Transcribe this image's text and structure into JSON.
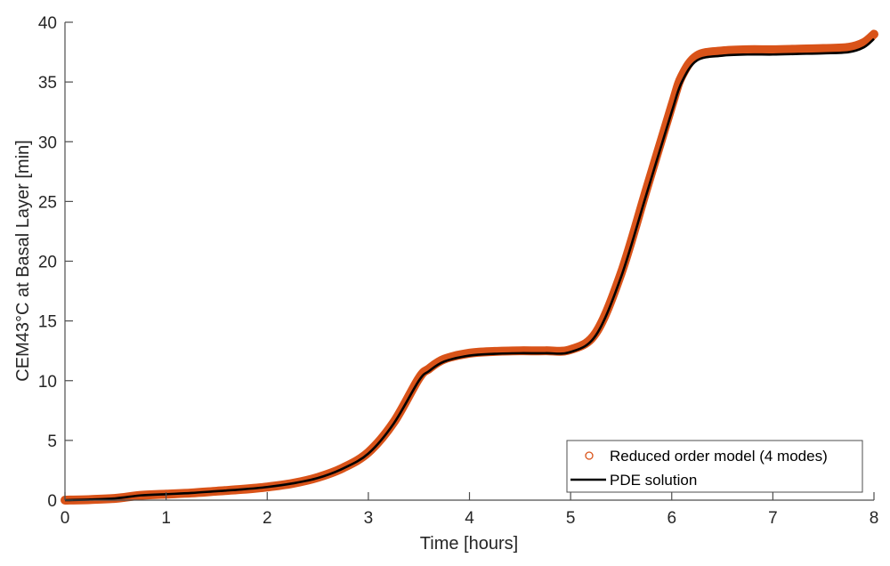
{
  "chart_data": {
    "type": "line",
    "title": "",
    "xlabel": "Time [hours]",
    "ylabel": "CEM43°C at Basal Layer [min]",
    "xlim": [
      0,
      8
    ],
    "ylim": [
      0,
      40
    ],
    "xticks": [
      0,
      1,
      2,
      3,
      4,
      5,
      6,
      7,
      8
    ],
    "yticks": [
      0,
      5,
      10,
      15,
      20,
      25,
      30,
      35,
      40
    ],
    "grid": false,
    "legend_position": "lower right",
    "series": [
      {
        "name": "Reduced order model (4 modes)",
        "style": "circle markers",
        "color": "#D95319",
        "x": [
          0,
          0.25,
          0.5,
          0.75,
          1,
          1.25,
          1.5,
          1.75,
          2,
          2.25,
          2.5,
          2.75,
          3,
          3.25,
          3.5,
          3.6,
          3.75,
          4,
          4.25,
          4.5,
          4.75,
          5,
          5.25,
          5.5,
          5.75,
          6,
          6.1,
          6.25,
          6.5,
          6.75,
          7,
          7.25,
          7.5,
          7.75,
          7.9,
          8
        ],
        "y": [
          0,
          0.05,
          0.15,
          0.4,
          0.5,
          0.6,
          0.75,
          0.9,
          1.1,
          1.4,
          1.9,
          2.7,
          4.0,
          6.5,
          10.2,
          11.0,
          11.8,
          12.3,
          12.45,
          12.5,
          12.5,
          12.6,
          14.0,
          19.0,
          26.0,
          33.0,
          35.5,
          37.2,
          37.6,
          37.7,
          37.7,
          37.75,
          37.8,
          37.9,
          38.3,
          39.0
        ]
      },
      {
        "name": "PDE solution",
        "style": "solid line",
        "color": "#000000",
        "x": [
          0,
          0.25,
          0.5,
          0.75,
          1,
          1.25,
          1.5,
          1.75,
          2,
          2.25,
          2.5,
          2.75,
          3,
          3.25,
          3.5,
          3.6,
          3.75,
          4,
          4.25,
          4.5,
          4.75,
          5,
          5.25,
          5.5,
          5.75,
          6,
          6.1,
          6.25,
          6.5,
          6.75,
          7,
          7.25,
          7.5,
          7.75,
          7.9,
          8
        ],
        "y": [
          0,
          0.05,
          0.15,
          0.4,
          0.5,
          0.6,
          0.75,
          0.9,
          1.1,
          1.4,
          1.85,
          2.65,
          3.9,
          6.4,
          10.0,
          10.8,
          11.6,
          12.1,
          12.25,
          12.3,
          12.3,
          12.4,
          13.8,
          18.7,
          25.6,
          32.5,
          35.0,
          36.8,
          37.2,
          37.3,
          37.3,
          37.35,
          37.4,
          37.5,
          37.9,
          38.6
        ]
      }
    ]
  },
  "axes": {
    "xlabel": "Time [hours]",
    "ylabel": "CEM43°C at Basal Layer [min]",
    "xtick_labels": [
      "0",
      "1",
      "2",
      "3",
      "4",
      "5",
      "6",
      "7",
      "8"
    ],
    "ytick_labels": [
      "0",
      "5",
      "10",
      "15",
      "20",
      "25",
      "30",
      "35",
      "40"
    ]
  },
  "legend": {
    "items": [
      {
        "label": "Reduced order model (4 modes)",
        "icon": "circle-marker-icon",
        "color": "#D95319"
      },
      {
        "label": "PDE solution",
        "icon": "line-icon",
        "color": "#000000"
      }
    ]
  },
  "colors": {
    "rom": "#D95319",
    "pde": "#000000",
    "axis": "#4d4d4d",
    "text": "#262626"
  }
}
